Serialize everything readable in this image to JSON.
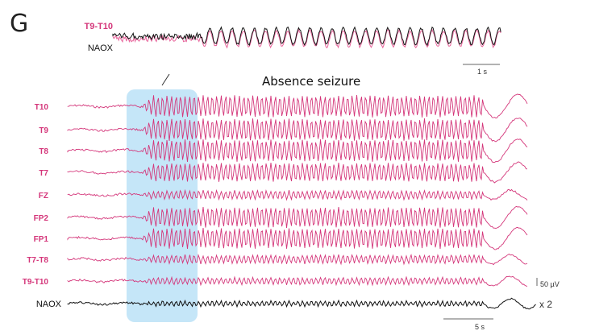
{
  "panel": {
    "letter": "G"
  },
  "inset": {
    "labels": {
      "top": "T9-T10",
      "bottom": "NAOX"
    },
    "scale_bar": "1 s"
  },
  "main": {
    "title": "Absence seizure",
    "channels": [
      "T10",
      "T9",
      "T8",
      "T7",
      "FZ",
      "FP2",
      "FP1",
      "T7-T8",
      "T9-T10",
      "NAOX"
    ],
    "amplitude_scale": "50 µV",
    "naox_gain": "x 2",
    "time_scale": "5 s"
  },
  "colors": {
    "eeg": "#d4367a",
    "naox": "#111111",
    "highlight": "#bfe3f7"
  },
  "chart_data": {
    "type": "line",
    "title": "Absence seizure",
    "series": [
      {
        "name": "T10",
        "color": "#d4367a"
      },
      {
        "name": "T9",
        "color": "#d4367a"
      },
      {
        "name": "T8",
        "color": "#d4367a"
      },
      {
        "name": "T7",
        "color": "#d4367a"
      },
      {
        "name": "FZ",
        "color": "#d4367a"
      },
      {
        "name": "FP2",
        "color": "#d4367a"
      },
      {
        "name": "FP1",
        "color": "#d4367a"
      },
      {
        "name": "T7-T8",
        "color": "#d4367a"
      },
      {
        "name": "T9-T10",
        "color": "#d4367a"
      },
      {
        "name": "NAOX",
        "color": "#111111"
      }
    ],
    "annotations": [
      "Absence seizure",
      "50 µV",
      "x 2",
      "5 s",
      "1 s",
      "seizure onset highlighted"
    ],
    "inset": {
      "series": [
        "T9-T10",
        "NAOX"
      ],
      "scale": "1 s"
    }
  }
}
